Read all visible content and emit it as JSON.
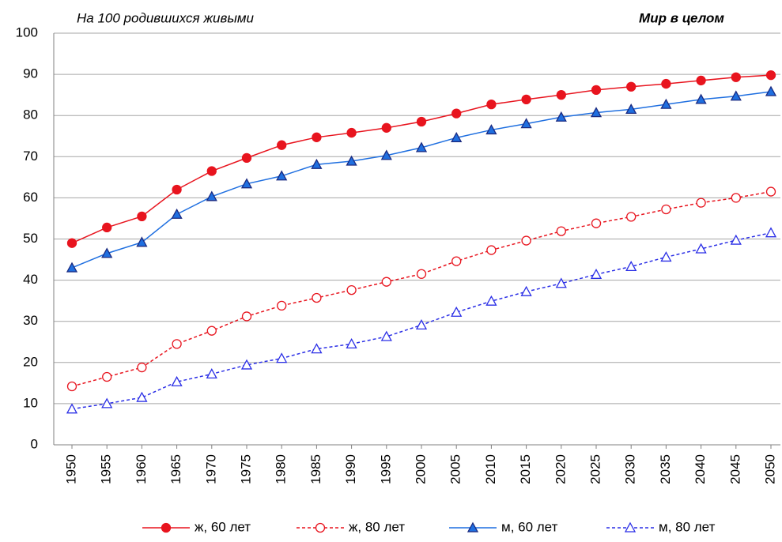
{
  "chart_data": {
    "type": "line",
    "title": "На 100 родившихся живыми",
    "subtitle": "Мир в целом",
    "categories": [
      "1950",
      "1955",
      "1960",
      "1965",
      "1970",
      "1975",
      "1980",
      "1985",
      "1990",
      "1995",
      "2000",
      "2005",
      "2010",
      "2015",
      "2020",
      "2025",
      "2030",
      "2035",
      "2040",
      "2045",
      "2050"
    ],
    "series": [
      {
        "name": "ж, 60 лет",
        "color": "#e8141e",
        "marker": "circle",
        "filled": true,
        "dashed": false,
        "values": [
          49,
          52.8,
          55.5,
          62,
          66.5,
          69.7,
          72.8,
          74.7,
          75.8,
          77,
          78.5,
          80.5,
          82.7,
          83.9,
          85,
          86.2,
          87,
          87.7,
          88.5,
          89.3,
          89.8
        ]
      },
      {
        "name": "ж, 80 лет",
        "color": "#e8141e",
        "marker": "circle",
        "filled": false,
        "dashed": true,
        "values": [
          14.2,
          16.5,
          18.8,
          24.5,
          27.7,
          31.2,
          33.8,
          35.7,
          37.6,
          39.6,
          41.5,
          44.6,
          47.3,
          49.6,
          51.9,
          53.8,
          55.4,
          57.2,
          58.8,
          60,
          61.5
        ]
      },
      {
        "name": "м, 60 лет",
        "color": "#1f6fe0",
        "marker": "triangle",
        "filled": true,
        "dashed": false,
        "values": [
          43,
          46.5,
          49.2,
          56,
          60.3,
          63.4,
          65.3,
          68.1,
          68.9,
          70.3,
          72.2,
          74.6,
          76.5,
          78,
          79.6,
          80.7,
          81.5,
          82.7,
          83.9,
          84.7,
          85.8
        ]
      },
      {
        "name": "м, 80 лет",
        "color": "#2a2ee6",
        "marker": "triangle",
        "filled": false,
        "dashed": true,
        "values": [
          8.7,
          10,
          11.5,
          15.3,
          17.2,
          19.4,
          21,
          23.3,
          24.5,
          26.3,
          29.1,
          32.2,
          34.9,
          37.2,
          39.2,
          41.4,
          43.3,
          45.6,
          47.6,
          49.7,
          51.5
        ]
      }
    ],
    "ylim": [
      0,
      100
    ],
    "yticks": [
      0,
      10,
      20,
      30,
      40,
      50,
      60,
      70,
      80,
      90,
      100
    ],
    "grid": true,
    "legend": "bottom"
  }
}
